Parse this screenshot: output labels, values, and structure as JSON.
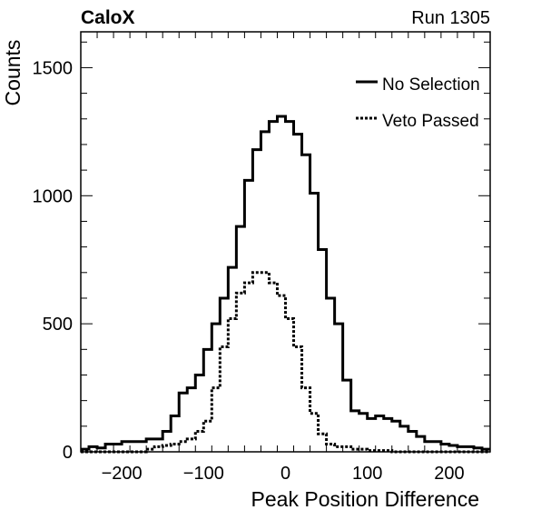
{
  "header": {
    "left": "CaloX",
    "right": "Run 1305"
  },
  "chart_data": {
    "type": "histogram",
    "xlabel": "Peak Position Difference",
    "ylabel": "Counts",
    "xlim": [
      -250,
      250
    ],
    "ylim": [
      0,
      1640
    ],
    "xticks": [
      "−200",
      "−100",
      "0",
      "100",
      "200"
    ],
    "xtick_values": [
      -200,
      -100,
      0,
      100,
      200
    ],
    "yticks": [
      "0",
      "500",
      "1000",
      "1500"
    ],
    "ytick_values": [
      0,
      500,
      1000,
      1500
    ],
    "bin_width": 10,
    "bin_start": -250,
    "legend_position": "top-right",
    "series": [
      {
        "name": "No Selection",
        "style": "solid",
        "values": [
          10,
          20,
          15,
          30,
          30,
          40,
          40,
          40,
          50,
          50,
          80,
          140,
          230,
          250,
          300,
          400,
          500,
          600,
          720,
          880,
          1060,
          1180,
          1250,
          1290,
          1310,
          1290,
          1240,
          1160,
          1010,
          790,
          600,
          500,
          280,
          160,
          150,
          130,
          140,
          130,
          120,
          100,
          80,
          60,
          40,
          40,
          30,
          25,
          20,
          20,
          15,
          10
        ]
      },
      {
        "name": "Veto Passed",
        "style": "dotted",
        "values": [
          0,
          0,
          0,
          0,
          0,
          0,
          0,
          0,
          10,
          20,
          25,
          30,
          40,
          50,
          80,
          120,
          250,
          410,
          520,
          620,
          660,
          700,
          700,
          660,
          610,
          520,
          410,
          250,
          150,
          70,
          30,
          20,
          20,
          10,
          10,
          5,
          5,
          5,
          0,
          0,
          0,
          0,
          0,
          0,
          0,
          0,
          0,
          0,
          0,
          0
        ]
      }
    ]
  }
}
